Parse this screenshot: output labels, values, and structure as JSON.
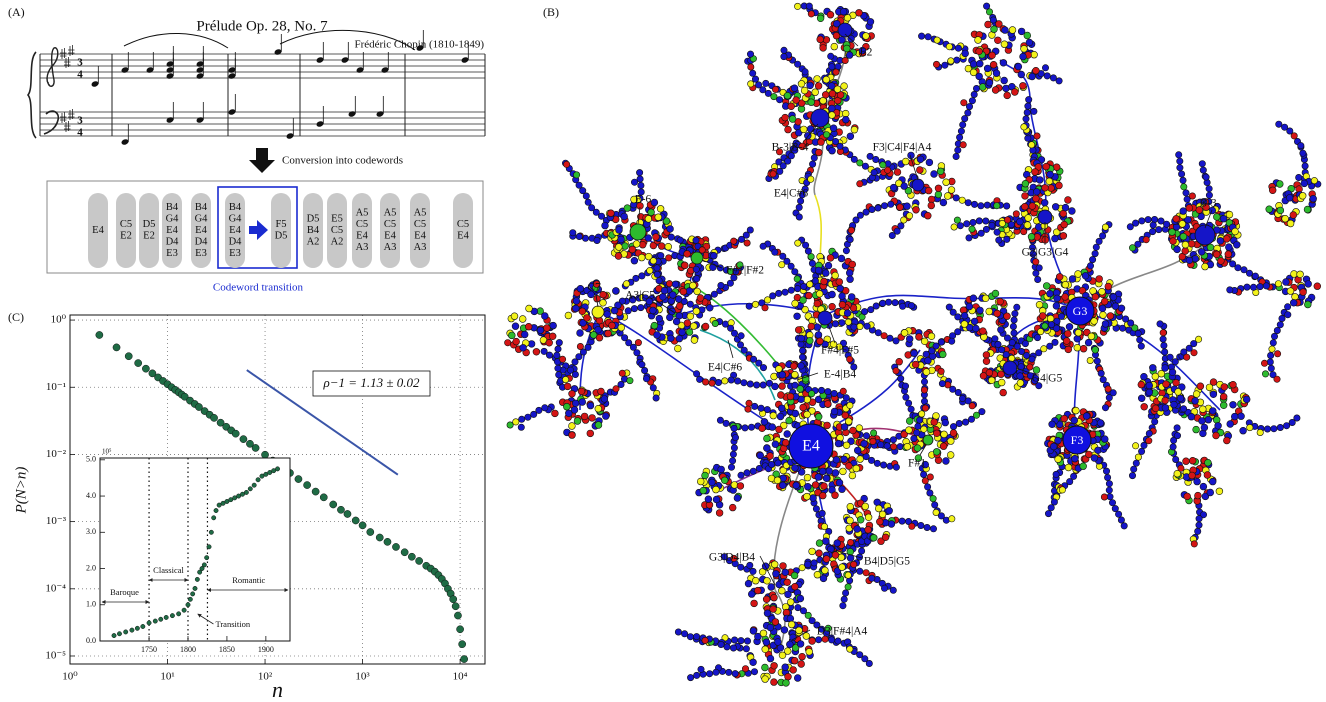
{
  "panel_a": {
    "label": "(A)",
    "title": "Prélude Op. 28, No. 7",
    "composer": "Frédéric Chopin (1810-1849)",
    "time_signature_top": "3",
    "time_signature_bottom": "4",
    "conversion": "Conversion into codewords",
    "codewords": [
      [
        "E4"
      ],
      [
        "C5",
        "E2"
      ],
      [
        "D5",
        "E2"
      ],
      [
        "B4",
        "G4",
        "E4",
        "D4",
        "E3"
      ],
      [
        "B4",
        "G4",
        "E4",
        "D4",
        "E3"
      ],
      [
        "B4",
        "G4",
        "E4",
        "D4",
        "E3"
      ],
      [
        "F5",
        "D5"
      ],
      [
        "D5",
        "B4",
        "A2"
      ],
      [
        "E5",
        "C5",
        "A2"
      ],
      [
        "A5",
        "C5",
        "E4",
        "A3"
      ],
      [
        "A5",
        "C5",
        "E4",
        "A3"
      ],
      [
        "A5",
        "C5",
        "E4",
        "A3"
      ],
      [
        "C5",
        "E4"
      ]
    ],
    "transition_caption": "Codeword transition"
  },
  "panel_b": {
    "label": "(B)",
    "hub_labels": [
      "E4",
      "G3",
      "F3"
    ],
    "node_labels": [
      "E2",
      "B-3|B-4",
      "E4|C#6",
      "F3|C4|F4|A4",
      "G2|G3|G4",
      "B-3",
      "E-6",
      "F#1|F#2",
      "C7",
      "A3|C5",
      "F#4|F#5",
      "E-4|B4",
      "E4|C#6",
      "G4|G5",
      "F#1",
      "G3|D4|B4",
      "B4|D5|G5",
      "D3|F#4|A4"
    ]
  },
  "panel_c": {
    "label": "(C)"
  },
  "chart_data": [
    {
      "type": "scatter",
      "xlabel": "n",
      "ylabel": "P(N>n)",
      "log_x": true,
      "log_y": true,
      "grid": true,
      "color": "#1f6b45",
      "xlim": [
        1,
        18000
      ],
      "ylim": [
        7.6e-06,
        1.19
      ],
      "xticks": [
        {
          "value": 1,
          "label": "10⁰"
        },
        {
          "value": 10,
          "label": "10¹"
        },
        {
          "value": 100,
          "label": "10²"
        },
        {
          "value": 1000,
          "label": "10³"
        },
        {
          "value": 10000,
          "label": "10⁴"
        }
      ],
      "yticks": [
        {
          "value": 1,
          "label": "10⁰"
        },
        {
          "value": 0.1,
          "label": "10⁻¹"
        },
        {
          "value": 0.01,
          "label": "10⁻²"
        },
        {
          "value": 0.001,
          "label": "10⁻³"
        },
        {
          "value": 0.0001,
          "label": "10⁻⁴"
        },
        {
          "value": 1e-05,
          "label": "10⁻⁵"
        }
      ],
      "x": [
        2,
        3,
        4,
        5,
        6,
        7,
        8,
        9,
        10,
        11,
        12,
        13,
        14,
        15,
        17,
        19,
        21,
        24,
        27,
        30,
        35,
        40,
        45,
        50,
        60,
        70,
        80,
        100,
        120,
        150,
        180,
        220,
        270,
        330,
        400,
        500,
        600,
        700,
        850,
        1000,
        1200,
        1500,
        1800,
        2200,
        2700,
        3200,
        3800,
        4500,
        5000,
        5500,
        6000,
        6500,
        7000,
        7500,
        8000,
        8500,
        9000,
        9500,
        10000,
        10500,
        11000
      ],
      "values": [
        0.6,
        0.392,
        0.29,
        0.229,
        0.189,
        0.161,
        0.14,
        0.124,
        0.111,
        0.1,
        0.0914,
        0.0842,
        0.0778,
        0.0723,
        0.0633,
        0.0564,
        0.0508,
        0.0442,
        0.039,
        0.035,
        0.0297,
        0.0258,
        0.0228,
        0.0204,
        0.0169,
        0.0144,
        0.0125,
        0.0099,
        0.0081,
        0.0065,
        0.0053,
        0.0043,
        0.0035,
        0.0028,
        0.0023,
        0.0018,
        0.0015,
        0.0013,
        0.00104,
        0.00088,
        0.0007,
        0.00058,
        0.0005,
        0.00042,
        0.00035,
        0.0003,
        0.00026,
        0.00022,
        0.0002,
        0.00018,
        0.00016,
        0.00014,
        0.00012,
        0.0001,
        8.5e-05,
        7e-05,
        5.5e-05,
        4e-05,
        2.5e-05,
        1.5e-05,
        9e-06
      ],
      "fit_line": {
        "x": [
          65,
          2300
        ],
        "values": [
          0.18,
          0.005
        ],
        "color": "#3a55a8"
      },
      "annotation": "ρ−1 = 1.13 ± 0.02"
    },
    {
      "type": "scatter",
      "color": "#1f6b45",
      "xlim": [
        1687,
        1931
      ],
      "ylim": [
        0,
        5.05
      ],
      "xticks": [
        1750,
        1800,
        1850,
        1900
      ],
      "yticks": [
        {
          "value": 0,
          "label": "0.0"
        },
        {
          "value": 1,
          "label": "1.0"
        },
        {
          "value": 2,
          "label": "2.0"
        },
        {
          "value": 3,
          "label": "3.0"
        },
        {
          "value": 4,
          "label": "4.0"
        },
        {
          "value": 5,
          "label": "5.0"
        }
      ],
      "y_scale_label": "10⁵",
      "x": [
        1705,
        1712,
        1720,
        1728,
        1735,
        1742,
        1750,
        1758,
        1765,
        1772,
        1780,
        1788,
        1795,
        1800,
        1803,
        1806,
        1809,
        1812,
        1815,
        1818,
        1821,
        1824,
        1827,
        1830,
        1833,
        1836,
        1840,
        1845,
        1850,
        1855,
        1860,
        1865,
        1870,
        1875,
        1880,
        1885,
        1890,
        1895,
        1900,
        1905,
        1910,
        1915
      ],
      "values": [
        0.15,
        0.2,
        0.25,
        0.3,
        0.35,
        0.4,
        0.5,
        0.55,
        0.6,
        0.65,
        0.7,
        0.75,
        0.85,
        1.0,
        1.15,
        1.3,
        1.45,
        1.7,
        1.9,
        2.0,
        2.1,
        2.3,
        2.6,
        3.0,
        3.4,
        3.6,
        3.75,
        3.8,
        3.85,
        3.9,
        3.95,
        4.0,
        4.05,
        4.1,
        4.2,
        4.3,
        4.45,
        4.55,
        4.6,
        4.65,
        4.7,
        4.75
      ],
      "era_boundaries": [
        1750,
        1800,
        1825
      ],
      "eras": [
        "Baroque",
        "Classical",
        "Transition",
        "Romantic"
      ]
    }
  ]
}
